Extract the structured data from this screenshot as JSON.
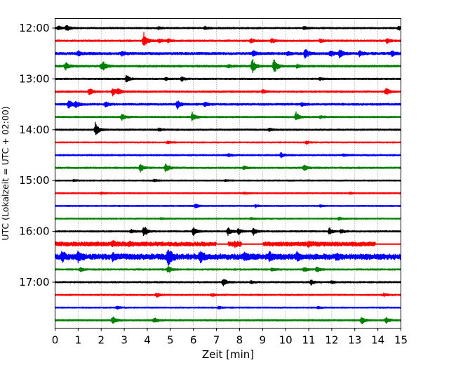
{
  "chart_data": {
    "type": "line",
    "title": "",
    "xlabel": "Zeit  [min]",
    "ylabel": "UTC (Lokalzeit = UTC + 02:00)",
    "xlim": [
      0,
      15
    ],
    "x_ticks": [
      "0",
      "1",
      "2",
      "3",
      "4",
      "5",
      "6",
      "7",
      "8",
      "9",
      "10",
      "11",
      "12",
      "13",
      "14",
      "15"
    ],
    "y_ticks": [
      "12:00",
      "13:00",
      "14:00",
      "15:00",
      "16:00",
      "17:00"
    ],
    "grid": "vertical dotted",
    "trace_interval_min": 15,
    "colors": [
      "#000000",
      "#ff0000",
      "#0000ff",
      "#008000"
    ],
    "series": [
      {
        "start": "12:00",
        "noise": 0.12,
        "events": [
          [
            0.15,
            0.4
          ],
          [
            0.5,
            0.7
          ],
          [
            4.5,
            0.3
          ],
          [
            6.5,
            0.3
          ],
          [
            10.8,
            0.35
          ],
          [
            14.9,
            0.4
          ]
        ]
      },
      {
        "start": "12:15",
        "noise": 0.13,
        "events": [
          [
            3.85,
            1.7
          ],
          [
            4.5,
            0.4
          ],
          [
            4.9,
            0.4
          ],
          [
            8.5,
            0.5
          ],
          [
            9.4,
            0.45
          ],
          [
            11.5,
            0.4
          ],
          [
            14.4,
            0.55
          ]
        ]
      },
      {
        "start": "12:30",
        "noise": 0.18,
        "events": [
          [
            1.0,
            0.5
          ],
          [
            2.9,
            0.4
          ],
          [
            8.6,
            0.55
          ],
          [
            10.1,
            0.4
          ],
          [
            10.85,
            1.0
          ],
          [
            11.95,
            0.6
          ],
          [
            12.35,
            0.9
          ],
          [
            13.2,
            0.5
          ],
          [
            14.6,
            0.6
          ]
        ]
      },
      {
        "start": "12:45",
        "noise": 0.15,
        "events": [
          [
            0.45,
            0.8
          ],
          [
            2.0,
            0.5
          ],
          [
            2.1,
            0.7
          ],
          [
            7.5,
            0.3
          ],
          [
            8.55,
            1.6
          ],
          [
            9.5,
            1.6
          ],
          [
            10.5,
            0.35
          ]
        ]
      },
      {
        "start": "13:00",
        "noise": 0.12,
        "events": [
          [
            3.1,
            0.8
          ],
          [
            4.8,
            0.3
          ],
          [
            5.5,
            0.45
          ],
          [
            11.5,
            0.3
          ]
        ]
      },
      {
        "start": "13:15",
        "noise": 0.13,
        "events": [
          [
            1.5,
            0.8
          ],
          [
            2.5,
            0.9
          ],
          [
            2.75,
            0.6
          ],
          [
            9.0,
            0.4
          ],
          [
            14.35,
            0.9
          ]
        ]
      },
      {
        "start": "13:30",
        "noise": 0.15,
        "events": [
          [
            0.6,
            0.9
          ],
          [
            0.9,
            0.7
          ],
          [
            2.2,
            0.6
          ],
          [
            5.3,
            0.9
          ],
          [
            6.5,
            0.4
          ],
          [
            10.7,
            0.35
          ]
        ]
      },
      {
        "start": "13:45",
        "noise": 0.12,
        "events": [
          [
            2.9,
            0.6
          ],
          [
            5.95,
            1.0
          ],
          [
            10.45,
            0.9
          ],
          [
            11.5,
            0.3
          ]
        ]
      },
      {
        "start": "14:00",
        "noise": 0.12,
        "events": [
          [
            1.75,
            1.4
          ],
          [
            4.5,
            0.35
          ],
          [
            9.3,
            0.3
          ]
        ]
      },
      {
        "start": "14:15",
        "noise": 0.1,
        "events": [
          [
            4.9,
            0.3
          ],
          [
            10.9,
            0.3
          ]
        ]
      },
      {
        "start": "14:30",
        "noise": 0.12,
        "events": [
          [
            7.5,
            0.3
          ],
          [
            9.8,
            0.45
          ],
          [
            12.5,
            0.25
          ]
        ]
      },
      {
        "start": "14:45",
        "noise": 0.12,
        "events": [
          [
            3.7,
            0.9
          ],
          [
            4.8,
            1.0
          ],
          [
            8.2,
            0.35
          ],
          [
            10.8,
            0.7
          ]
        ]
      },
      {
        "start": "15:00",
        "noise": 0.1,
        "events": [
          [
            0.8,
            0.2
          ],
          [
            4.3,
            0.25
          ],
          [
            7.4,
            0.2
          ]
        ]
      },
      {
        "start": "15:15",
        "noise": 0.1,
        "events": [
          [
            2.0,
            0.2
          ],
          [
            8.2,
            0.2
          ],
          [
            12.8,
            0.2
          ]
        ]
      },
      {
        "start": "15:30",
        "noise": 0.1,
        "events": [
          [
            6.1,
            0.5
          ],
          [
            8.7,
            0.25
          ],
          [
            11.5,
            0.2
          ]
        ]
      },
      {
        "start": "15:45",
        "noise": 0.1,
        "events": [
          [
            4.6,
            0.2
          ],
          [
            8.5,
            0.2
          ],
          [
            12.3,
            0.3
          ]
        ]
      },
      {
        "start": "16:00",
        "noise": 0.12,
        "events": [
          [
            3.3,
            0.35
          ],
          [
            3.85,
            1.3
          ],
          [
            6.0,
            0.9
          ],
          [
            7.5,
            0.8
          ],
          [
            7.95,
            0.6
          ],
          [
            8.6,
            0.7
          ],
          [
            11.9,
            0.7
          ],
          [
            12.4,
            0.4
          ]
        ]
      },
      {
        "start": "16:15",
        "noise": 0.32,
        "events": [
          [
            2.5,
            0.4
          ],
          [
            3.2,
            0.35
          ],
          [
            7.8,
            0.4
          ],
          [
            11.0,
            0.4
          ]
        ],
        "gaps": [
          [
            7.0,
            7.5
          ],
          [
            8.1,
            9.0
          ],
          [
            13.9,
            15.0
          ]
        ]
      },
      {
        "start": "16:30",
        "noise": 0.42,
        "events": [
          [
            0.3,
            0.9
          ],
          [
            1.0,
            0.9
          ],
          [
            2.5,
            0.7
          ],
          [
            4.9,
            2.1
          ],
          [
            6.3,
            1.0
          ],
          [
            8.2,
            0.6
          ],
          [
            9.3,
            0.7
          ],
          [
            10.5,
            0.7
          ],
          [
            12.2,
            0.5
          ]
        ]
      },
      {
        "start": "16:45",
        "noise": 0.12,
        "events": [
          [
            1.1,
            0.4
          ],
          [
            4.9,
            0.8
          ],
          [
            9.4,
            0.3
          ],
          [
            10.8,
            0.5
          ],
          [
            11.35,
            0.6
          ]
        ]
      },
      {
        "start": "17:00",
        "noise": 0.12,
        "events": [
          [
            7.3,
            0.75
          ],
          [
            8.5,
            0.3
          ],
          [
            11.1,
            0.55
          ],
          [
            12.0,
            0.3
          ]
        ]
      },
      {
        "start": "17:15",
        "noise": 0.11,
        "events": [
          [
            4.4,
            0.45
          ],
          [
            6.8,
            0.35
          ],
          [
            14.25,
            0.3
          ]
        ]
      },
      {
        "start": "17:30",
        "noise": 0.1,
        "events": [
          [
            2.7,
            0.3
          ],
          [
            7.1,
            0.3
          ],
          [
            11.4,
            0.25
          ]
        ]
      },
      {
        "start": "17:45",
        "noise": 0.12,
        "events": [
          [
            2.5,
            0.9
          ],
          [
            4.3,
            0.6
          ],
          [
            13.3,
            0.8
          ],
          [
            14.35,
            0.6
          ]
        ]
      }
    ]
  }
}
